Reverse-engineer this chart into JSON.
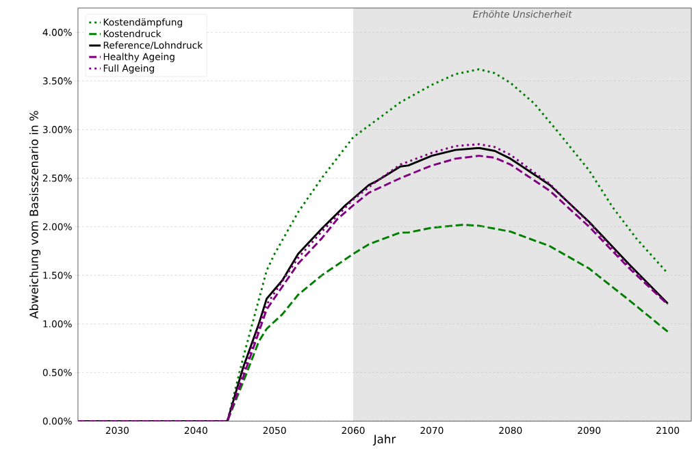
{
  "chart_data": {
    "type": "line",
    "xlabel": "Jahr",
    "ylabel": "Abweichung vom Basisszenario in %",
    "xlim": [
      2025,
      2103
    ],
    "ylim": [
      0,
      4.25
    ],
    "xticks": [
      2030,
      2040,
      2050,
      2060,
      2070,
      2080,
      2090,
      2100
    ],
    "yticks": [
      {
        "value": 0,
        "label": "0.00%"
      },
      {
        "value": 0.5,
        "label": "0.50%"
      },
      {
        "value": 1,
        "label": "1.00%"
      },
      {
        "value": 1.5,
        "label": "1.50%"
      },
      {
        "value": 2,
        "label": "2.00%"
      },
      {
        "value": 2.5,
        "label": "2.50%"
      },
      {
        "value": 3,
        "label": "3.00%"
      },
      {
        "value": 3.5,
        "label": "3.50%"
      },
      {
        "value": 4,
        "label": "4.00%"
      }
    ],
    "grid": "y",
    "legend": "top left",
    "marker": "none",
    "bands": [
      {
        "axis": "x",
        "from": 2060,
        "to": 2103,
        "label": "Erhöhte Unsicherheit",
        "color": "#e5e5e5"
      }
    ],
    "series": [
      {
        "name": "Kostendämpfung",
        "color": "#008000",
        "line_style": "dotted",
        "x": [
          2025,
          2044,
          2046,
          2048,
          2049,
          2050,
          2053,
          2056,
          2060,
          2063,
          2066,
          2070,
          2073,
          2076,
          2078,
          2080,
          2083,
          2086,
          2090,
          2093,
          2096,
          2100
        ],
        "values": [
          0,
          0,
          0.65,
          1.25,
          1.55,
          1.72,
          2.15,
          2.5,
          2.92,
          3.1,
          3.28,
          3.46,
          3.57,
          3.62,
          3.58,
          3.48,
          3.27,
          2.98,
          2.58,
          2.2,
          1.88,
          1.52
        ]
      },
      {
        "name": "Kostendruck",
        "color": "#008000",
        "line_style": "dashed",
        "x": [
          2025,
          2044,
          2046,
          2048,
          2049,
          2051,
          2053,
          2056,
          2060,
          2062,
          2066,
          2067,
          2070,
          2074,
          2076,
          2080,
          2085,
          2090,
          2095,
          2100
        ],
        "values": [
          0,
          0,
          0.4,
          0.82,
          0.95,
          1.1,
          1.3,
          1.5,
          1.72,
          1.82,
          1.94,
          1.94,
          1.99,
          2.02,
          2.01,
          1.95,
          1.8,
          1.57,
          1.25,
          0.92
        ]
      },
      {
        "name": "Reference/Lohndruck",
        "color": "#000000",
        "line_style": "solid",
        "x": [
          2025,
          2044,
          2046,
          2048,
          2049,
          2051,
          2053,
          2056,
          2059,
          2062,
          2063,
          2066,
          2067,
          2070,
          2073,
          2076,
          2078,
          2080,
          2085,
          2090,
          2095,
          2100
        ],
        "values": [
          0,
          0,
          0.55,
          1.0,
          1.26,
          1.45,
          1.72,
          1.98,
          2.22,
          2.43,
          2.47,
          2.62,
          2.63,
          2.73,
          2.79,
          2.81,
          2.78,
          2.7,
          2.43,
          2.05,
          1.62,
          1.21
        ]
      },
      {
        "name": "Healthy Ageing",
        "color": "#800080",
        "line_style": "dashed",
        "x": [
          2025,
          2044,
          2046,
          2049,
          2053,
          2056,
          2058,
          2060,
          2062,
          2066,
          2070,
          2073,
          2076,
          2078,
          2080,
          2085,
          2090,
          2095,
          2100
        ],
        "values": [
          0,
          0,
          0.45,
          1.15,
          1.62,
          1.88,
          2.08,
          2.22,
          2.35,
          2.5,
          2.63,
          2.7,
          2.73,
          2.71,
          2.64,
          2.37,
          2.0,
          1.58,
          1.2
        ]
      },
      {
        "name": "Full Ageing",
        "color": "#800080",
        "line_style": "dotted",
        "x": [
          2025,
          2044,
          2046,
          2049,
          2053,
          2056,
          2060,
          2063,
          2066,
          2070,
          2073,
          2076,
          2078,
          2080,
          2085,
          2090,
          2095,
          2100
        ],
        "values": [
          0,
          0,
          0.5,
          1.2,
          1.68,
          1.95,
          2.28,
          2.47,
          2.64,
          2.76,
          2.83,
          2.85,
          2.82,
          2.74,
          2.44,
          2.04,
          1.6,
          1.2
        ]
      }
    ]
  }
}
